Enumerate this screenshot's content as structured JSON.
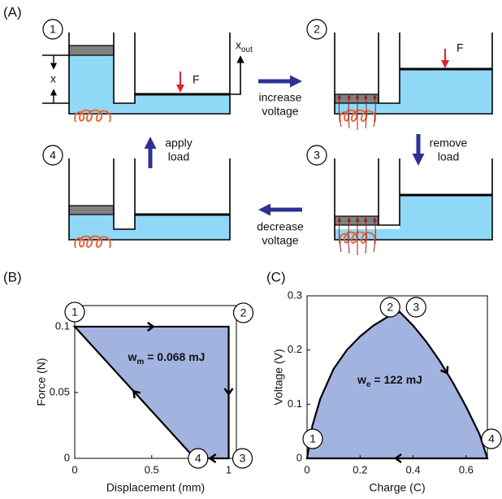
{
  "panel_a": {
    "panel_label": "(A)",
    "steps": [
      "1",
      "2",
      "3",
      "4"
    ],
    "x_label": "x",
    "force_label": "F",
    "output_label": [
      "x",
      "out"
    ],
    "transitions": [
      [
        "increase",
        "voltage"
      ],
      [
        "remove",
        "load"
      ],
      [
        "decrease",
        "voltage"
      ],
      [
        "apply",
        "load"
      ]
    ]
  },
  "chart_data": [
    {
      "type": "area",
      "panel_label": "(B)",
      "x_label": "Displacement (mm)",
      "y_label": "Force (N)",
      "x": [
        0,
        1,
        1,
        0.78
      ],
      "series": [
        {
          "values": [
            0.1,
            0.1,
            0,
            0
          ],
          "color": "#a3b3df"
        }
      ],
      "point_labels": [
        "1",
        "2",
        "3",
        "4"
      ],
      "annotation": [
        "w",
        "m",
        " = 0.068 mJ"
      ],
      "xlim": [
        0,
        1.05
      ],
      "ylim": [
        0,
        0.116
      ],
      "xticks": [
        0,
        0.5,
        1
      ],
      "yticks": [
        0,
        0.05,
        0.1
      ]
    },
    {
      "type": "area",
      "panel_label": "(C)",
      "x_label": "Charge (C)",
      "y_label": "Voltage (V)",
      "x": [
        0,
        0.02,
        0.05,
        0.1,
        0.15,
        0.2,
        0.25,
        0.3,
        0.35,
        0.4,
        0.45,
        0.5,
        0.55,
        0.6,
        0.65,
        0.68
      ],
      "series": [
        {
          "values": [
            0,
            0.06,
            0.11,
            0.165,
            0.2,
            0.225,
            0.245,
            0.26,
            0.27,
            0.245,
            0.215,
            0.18,
            0.14,
            0.095,
            0.045,
            0
          ],
          "color": "#a3b3df"
        }
      ],
      "point_labels": [
        "1",
        "2",
        "3",
        "4"
      ],
      "annotation": [
        "w",
        "e",
        " = 122 mJ"
      ],
      "xlim": [
        0,
        0.68
      ],
      "ylim": [
        0,
        0.3
      ],
      "xticks": [
        0,
        0.2,
        0.4,
        0.6
      ],
      "yticks": [
        0,
        0.1,
        0.2,
        0.3
      ]
    }
  ]
}
